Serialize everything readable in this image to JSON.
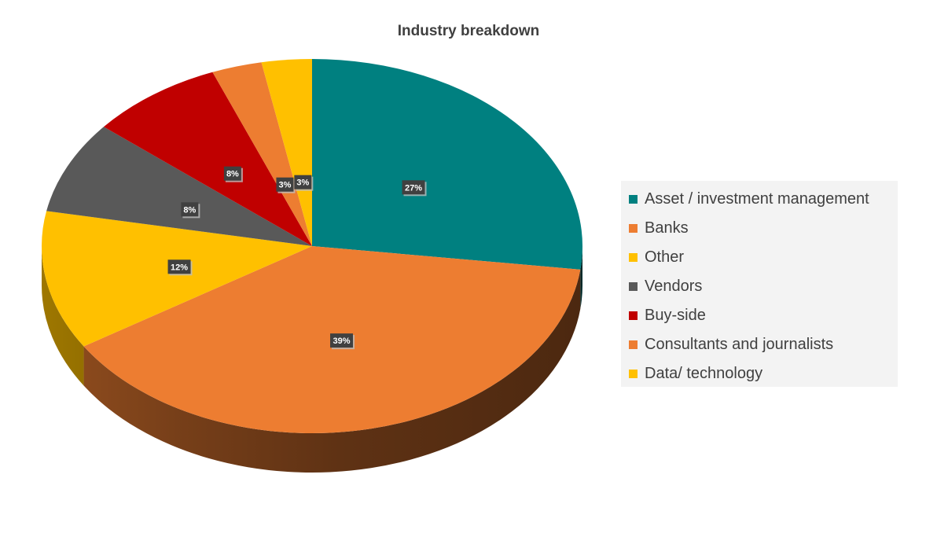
{
  "chart_data": {
    "type": "pie",
    "title": "Industry breakdown",
    "three_d": true,
    "legend_position": "right",
    "categories": [
      "Asset / investment management",
      "Banks",
      "Other",
      "Vendors",
      "Buy-side",
      "Consultants and journalists",
      "Data/ technology"
    ],
    "values": [
      27,
      39,
      12,
      8,
      8,
      3,
      3
    ],
    "labels": [
      "27%",
      "39%",
      "12%",
      "8%",
      "8%",
      "3%",
      "3%"
    ],
    "colors": [
      "#008080",
      "#ED7D31",
      "#FFC000",
      "#595959",
      "#C00000",
      "#ED7D31",
      "#FFC000"
    ]
  }
}
